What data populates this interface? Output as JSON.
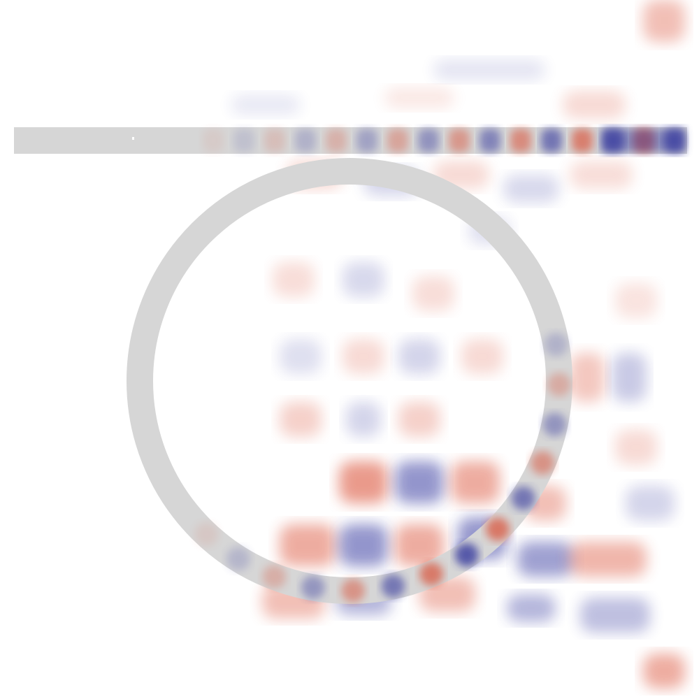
{
  "image": {
    "subject": "field-simulation-ring-resonator",
    "background_color": "#ffffff"
  },
  "waveguide": {
    "color": "#d6d6d6"
  },
  "ring": {
    "color": "#d6d6d6"
  },
  "field_colors": {
    "positive": "#d9482f",
    "negative": "#2b2f9a",
    "neutral": "#ffffff"
  },
  "source_marker": {
    "color": "#ffffff"
  }
}
